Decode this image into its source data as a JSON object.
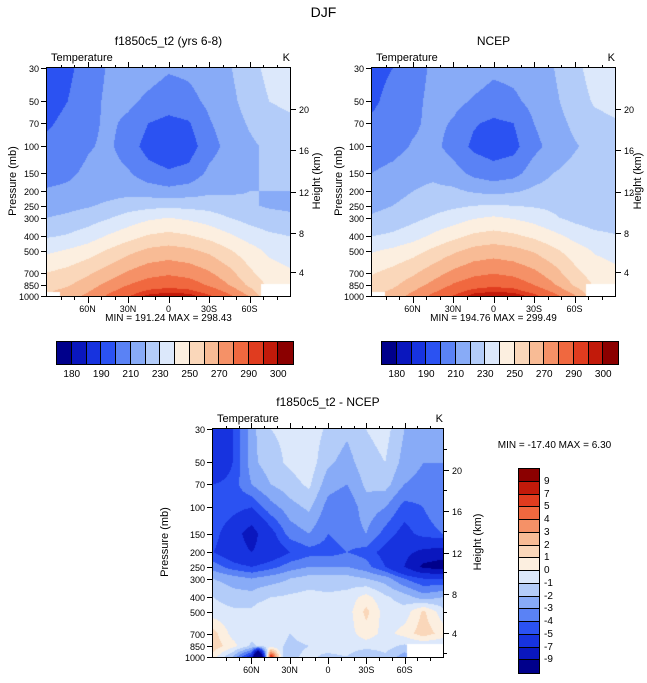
{
  "title": "DJF",
  "chart_data": {
    "type": "heatmap",
    "x_axis": "latitude",
    "y_axis": "pressure (mb, log scale, 30 top to 1000 bottom)",
    "palette": [
      "#00008B",
      "#0A17BE",
      "#1733DF",
      "#2B52F2",
      "#5A82F5",
      "#88ABF7",
      "#B3CCF9",
      "#DCE8FB",
      "#FCEFE0",
      "#FAD7BA",
      "#F8BB95",
      "#F59167",
      "#F0683F",
      "#E03C1F",
      "#C21A0A",
      "#8B0000"
    ],
    "levels": {
      "absolute": [
        180,
        185,
        190,
        200,
        210,
        220,
        230,
        240,
        250,
        260,
        270,
        280,
        290,
        295,
        300
      ],
      "difference": [
        -9,
        -7,
        -5,
        -4,
        -3,
        -2,
        -1,
        0,
        1,
        2,
        3,
        4,
        5,
        7,
        9
      ]
    },
    "colorbars": {
      "absolute_labels": [
        "180",
        "190",
        "210",
        "230",
        "250",
        "270",
        "290",
        "300"
      ],
      "absolute_label_level_indices": [
        0,
        2,
        4,
        6,
        8,
        10,
        12,
        14
      ],
      "difference_labels": [
        "9",
        "7",
        "5",
        "4",
        "3",
        "2",
        "1",
        "0",
        "-1",
        "-2",
        "-3",
        "-4",
        "-5",
        "-7",
        "-9"
      ]
    },
    "axes": {
      "pressure_label": "Pressure (mb)",
      "height_label": "Height (km)",
      "pressure_ticks": [
        30,
        50,
        70,
        100,
        150,
        200,
        250,
        300,
        400,
        500,
        700,
        850,
        1000
      ],
      "height_ticks": [
        {
          "label": "20",
          "p": 56
        },
        {
          "label": "16",
          "p": 106
        },
        {
          "label": "12",
          "p": 201
        },
        {
          "label": "8",
          "p": 382
        },
        {
          "label": "4",
          "p": 687
        }
      ],
      "lat_ticks": [
        {
          "label": "60N",
          "lat": 60
        },
        {
          "label": "30N",
          "lat": 30
        },
        {
          "label": "0",
          "lat": 0
        },
        {
          "label": "30S",
          "lat": -30
        },
        {
          "label": "60S",
          "lat": -60
        }
      ]
    },
    "panels": [
      {
        "id": "model",
        "title": "f1850c5_t2 (yrs 6-8)",
        "field_label": "Temperature",
        "units_label": "K",
        "min_max_label": "MIN = 191.24  MAX = 298.43",
        "min": 191.24,
        "max": 298.43,
        "level_set": "absolute",
        "lats": [
          90,
          75,
          60,
          45,
          30,
          15,
          0,
          -15,
          -30,
          -45,
          -60,
          -75,
          -90
        ],
        "pressures": [
          30,
          50,
          70,
          100,
          150,
          200,
          250,
          300,
          400,
          500,
          700,
          850,
          1000
        ],
        "values": [
          [
            196,
            198,
            204,
            211,
            215,
            214,
            211,
            212,
            215,
            219,
            226,
            233,
            236
          ],
          [
            197,
            200,
            206,
            212,
            212,
            208,
            205,
            207,
            212,
            217,
            224,
            230,
            232
          ],
          [
            199,
            202,
            207,
            212,
            208,
            200,
            197,
            199,
            209,
            215,
            221,
            226,
            228
          ],
          [
            202,
            204,
            209,
            212,
            205,
            196,
            193,
            195,
            206,
            213,
            218,
            222,
            223
          ],
          [
            206,
            208,
            212,
            214,
            211,
            204,
            201,
            203,
            212,
            216,
            219,
            221,
            221
          ],
          [
            211,
            212,
            214,
            216,
            217,
            215,
            213,
            215,
            218,
            219,
            220,
            220,
            220
          ],
          [
            215,
            217,
            219,
            222,
            225,
            227,
            228,
            227,
            226,
            223,
            221,
            219,
            218
          ],
          [
            220,
            222,
            225,
            229,
            234,
            238,
            240,
            238,
            235,
            230,
            226,
            223,
            222
          ],
          [
            229,
            231,
            235,
            241,
            246,
            251,
            253,
            251,
            247,
            242,
            236,
            232,
            230
          ],
          [
            238,
            241,
            245,
            251,
            257,
            262,
            264,
            262,
            258,
            251,
            244,
            238,
            236
          ],
          [
            250,
            253,
            258,
            264,
            271,
            276,
            278,
            276,
            271,
            263,
            252,
            244,
            241
          ],
          [
            256,
            259,
            265,
            273,
            280,
            285,
            287,
            285,
            279,
            270,
            258,
            248,
            244
          ],
          [
            261,
            265,
            272,
            281,
            289,
            296,
            298,
            297,
            291,
            282,
            269,
            250,
            246
          ]
        ],
        "mask": [
          {
            "lat_max": -69,
            "p_min": 840
          },
          {
            "lat_min": 81,
            "p_min": 945
          }
        ]
      },
      {
        "id": "ncep",
        "title": "NCEP",
        "field_label": "Temperature",
        "units_label": "K",
        "min_max_label": "MIN = 194.76  MAX = 299.49",
        "min": 194.76,
        "max": 299.49,
        "level_set": "absolute",
        "lats": [
          90,
          75,
          60,
          45,
          30,
          15,
          0,
          -15,
          -30,
          -45,
          -60,
          -75,
          -90
        ],
        "pressures": [
          30,
          50,
          70,
          100,
          150,
          200,
          250,
          300,
          400,
          500,
          700,
          850,
          1000
        ],
        "values": [
          [
            198,
            200,
            205,
            212,
            216,
            215,
            212,
            213,
            216,
            220,
            227,
            234,
            237
          ],
          [
            199,
            202,
            207,
            213,
            213,
            209,
            206,
            208,
            213,
            218,
            225,
            231,
            233
          ],
          [
            201,
            203,
            208,
            213,
            209,
            201,
            198,
            200,
            210,
            216,
            222,
            227,
            229
          ],
          [
            204,
            206,
            211,
            213,
            206,
            198,
            195,
            197,
            207,
            214,
            219,
            223,
            224
          ],
          [
            210,
            213,
            217,
            218,
            214,
            207,
            204,
            206,
            215,
            220,
            223,
            225,
            225
          ],
          [
            216,
            217,
            220,
            222,
            222,
            219,
            217,
            219,
            222,
            224,
            226,
            227,
            227
          ],
          [
            218,
            220,
            223,
            226,
            228,
            230,
            231,
            230,
            229,
            228,
            228,
            228,
            228
          ],
          [
            221,
            223,
            227,
            231,
            235,
            239,
            241,
            239,
            236,
            231,
            227,
            224,
            223
          ],
          [
            230,
            232,
            236,
            242,
            247,
            252,
            254,
            252,
            248,
            243,
            237,
            233,
            231
          ],
          [
            239,
            242,
            246,
            252,
            258,
            263,
            265,
            263,
            259,
            252,
            245,
            239,
            237
          ],
          [
            249,
            253,
            258,
            265,
            272,
            277,
            279,
            277,
            272,
            264,
            253,
            245,
            242
          ],
          [
            254,
            258,
            265,
            273,
            281,
            286,
            288,
            286,
            280,
            271,
            259,
            249,
            245
          ],
          [
            259,
            264,
            273,
            282,
            290,
            297,
            299,
            298,
            292,
            283,
            271,
            253,
            247
          ]
        ],
        "mask": [
          {
            "lat_max": -69,
            "p_min": 840
          },
          {
            "lat_min": 81,
            "p_min": 945
          }
        ]
      },
      {
        "id": "diff",
        "title": "f1850c5_t2 - NCEP",
        "field_label": "Temperature",
        "units_label": "K",
        "min_max_label": "MIN = -17.40  MAX =  6.30",
        "min": -17.4,
        "max": 6.3,
        "level_set": "difference",
        "lats": [
          90,
          75,
          60,
          55,
          45,
          35,
          30,
          15,
          0,
          -15,
          -30,
          -45,
          -60,
          -75,
          -90
        ],
        "pressures": [
          30,
          50,
          70,
          100,
          150,
          200,
          250,
          300,
          400,
          500,
          700,
          850,
          1000
        ],
        "values": [
          [
            -6.5,
            -5,
            -2.5,
            -1.8,
            -1,
            -0.8,
            -0.6,
            -0.4,
            -1.2,
            -1.8,
            -1,
            -0.6,
            -2,
            -2.6,
            -3
          ],
          [
            -7,
            -5,
            -2.5,
            -2,
            -1.5,
            -1,
            -0.8,
            -0.4,
            -1.8,
            -2.4,
            -1.4,
            -1,
            -2.4,
            -3,
            -3
          ],
          [
            -5,
            -4.5,
            -3,
            -2.6,
            -2,
            -1.6,
            -1.4,
            -0.8,
            -2.6,
            -3,
            -1.8,
            -1.6,
            -3,
            -3.4,
            -3.4
          ],
          [
            -4,
            -4.5,
            -5,
            -4.4,
            -3.4,
            -2.8,
            -2.4,
            -1.8,
            -3.4,
            -3.8,
            -2.4,
            -3,
            -4.4,
            -4,
            -3.2
          ],
          [
            -4.5,
            -6,
            -8,
            -7,
            -5.5,
            -4.2,
            -3.6,
            -3,
            -4,
            -3.6,
            -3,
            -4.4,
            -5.5,
            -4.5,
            -4
          ],
          [
            -5,
            -6,
            -7,
            -6.6,
            -6,
            -5.4,
            -5,
            -4.4,
            -4.4,
            -4,
            -4.4,
            -5.5,
            -6.5,
            -7.5,
            -8
          ],
          [
            -3.5,
            -4.5,
            -5,
            -4.8,
            -4.4,
            -3.8,
            -3.5,
            -3,
            -3,
            -3,
            -3.6,
            -5,
            -7,
            -9.5,
            -10
          ],
          [
            -2,
            -2.5,
            -3,
            -2.8,
            -2.5,
            -2.2,
            -2,
            -1.6,
            -1.6,
            -1.6,
            -2,
            -2.5,
            -4,
            -5,
            -5
          ],
          [
            -1,
            -1.5,
            -1.5,
            -1.2,
            -1,
            -0.9,
            -0.8,
            -0.6,
            -0.8,
            -0.6,
            0.4,
            -0.8,
            -1.5,
            -2.5,
            -2
          ],
          [
            -0.6,
            -0.8,
            -0.8,
            -0.7,
            -0.6,
            -0.7,
            -0.8,
            -0.5,
            -0.8,
            -0.5,
            1.3,
            -0.5,
            -0.6,
            1.2,
            -0.6
          ],
          [
            1.4,
            -0.4,
            -0.6,
            -0.55,
            -0.5,
            -0.8,
            -1,
            -0.6,
            -0.5,
            -0.5,
            0.6,
            -0.4,
            0.4,
            1.6,
            0.6
          ],
          [
            1.6,
            0.4,
            -1.2,
            -0.9,
            -0.6,
            -1,
            -1.2,
            -1,
            -0.6,
            -0.5,
            -0.6,
            -0.6,
            -1.2,
            -1,
            -1
          ],
          [
            0.5,
            -2,
            -6,
            -17.4,
            6.3,
            -1.6,
            -1.2,
            -0.8,
            -1.2,
            -1,
            -2,
            -1.2,
            -2.5,
            -2,
            -2
          ]
        ],
        "mask": [
          {
            "lat_max": -62,
            "p_min": 830
          }
        ]
      }
    ]
  }
}
